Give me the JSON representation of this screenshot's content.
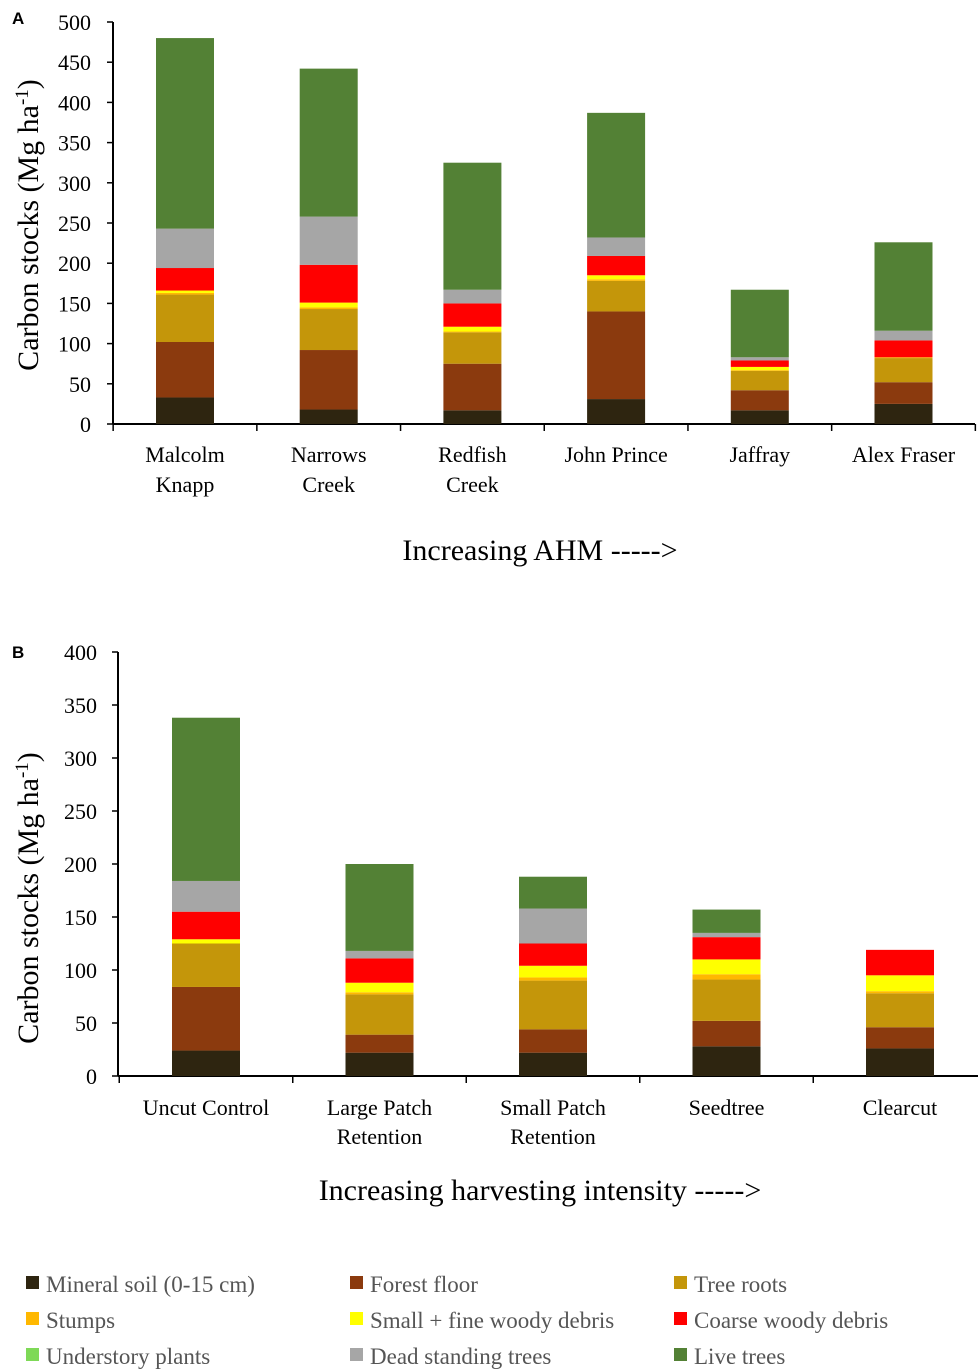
{
  "colors": {
    "mineral_soil": "#2e2510",
    "forest_floor": "#8b3a0e",
    "tree_roots": "#c4960a",
    "stumps": "#ffb800",
    "small_fine_woody_debris": "#ffff00",
    "coarse_woody_debris": "#ff0000",
    "understory_plants": "#7ed957",
    "dead_standing_trees": "#a6a6a6",
    "live_trees": "#538135"
  },
  "legend": [
    {
      "key": "mineral_soil",
      "label": "Mineral soil (0-15 cm)"
    },
    {
      "key": "forest_floor",
      "label": "Forest floor"
    },
    {
      "key": "tree_roots",
      "label": "Tree roots"
    },
    {
      "key": "stumps",
      "label": "Stumps"
    },
    {
      "key": "small_fine_woody_debris",
      "label": "Small + fine woody debris"
    },
    {
      "key": "coarse_woody_debris",
      "label": "Coarse woody debris"
    },
    {
      "key": "understory_plants",
      "label": "Understory plants"
    },
    {
      "key": "dead_standing_trees",
      "label": "Dead standing trees"
    },
    {
      "key": "live_trees",
      "label": "Live trees"
    }
  ],
  "chart_data": [
    {
      "panel": "A",
      "type": "bar",
      "stacked": true,
      "xlabel": "Increasing AHM ----->",
      "ylabel": "Carbon stocks (Mg ha",
      "ylabel_sup": "-1",
      "ylabel_end": ")",
      "ylim": [
        0,
        500
      ],
      "yticks": [
        0,
        50,
        100,
        150,
        200,
        250,
        300,
        350,
        400,
        450,
        500
      ],
      "categories": [
        [
          "Malcolm",
          "Knapp"
        ],
        [
          "Narrows",
          "Creek"
        ],
        [
          "Redfish",
          "Creek"
        ],
        [
          "John Prince"
        ],
        [
          "Jaffray"
        ],
        [
          "Alex Fraser"
        ]
      ],
      "series": [
        {
          "key": "mineral_soil",
          "name": "Mineral soil (0-15 cm)",
          "values": [
            33,
            18,
            17,
            31,
            17,
            25
          ]
        },
        {
          "key": "forest_floor",
          "name": "Forest floor",
          "values": [
            69,
            74,
            58,
            109,
            25,
            27
          ]
        },
        {
          "key": "tree_roots",
          "name": "Tree roots",
          "values": [
            59,
            51,
            39,
            38,
            24,
            30
          ]
        },
        {
          "key": "stumps",
          "name": "Stumps",
          "values": [
            2,
            2,
            1,
            2,
            1,
            1
          ]
        },
        {
          "key": "small_fine_woody_debris",
          "name": "Small + fine woody debris",
          "values": [
            3,
            6,
            6,
            5,
            4,
            0
          ]
        },
        {
          "key": "coarse_woody_debris",
          "name": "Coarse woody debris",
          "values": [
            28,
            47,
            29,
            24,
            8,
            21
          ]
        },
        {
          "key": "understory_plants",
          "name": "Understory plants",
          "values": [
            0,
            0,
            0,
            0,
            0,
            0
          ]
        },
        {
          "key": "dead_standing_trees",
          "name": "Dead standing trees",
          "values": [
            49,
            60,
            17,
            23,
            4,
            12
          ]
        },
        {
          "key": "live_trees",
          "name": "Live trees",
          "values": [
            237,
            184,
            158,
            155,
            84,
            110
          ]
        }
      ]
    },
    {
      "panel": "B",
      "type": "bar",
      "stacked": true,
      "xlabel": "Increasing harvesting intensity ----->",
      "ylabel": "Carbon stocks (Mg ha",
      "ylabel_sup": "-1",
      "ylabel_end": ")",
      "ylim": [
        0,
        400
      ],
      "yticks": [
        0,
        50,
        100,
        150,
        200,
        250,
        300,
        350,
        400
      ],
      "categories": [
        [
          "Uncut Control"
        ],
        [
          "Large Patch",
          "Retention"
        ],
        [
          "Small Patch",
          "Retention"
        ],
        [
          "Seedtree"
        ],
        [
          "Clearcut"
        ]
      ],
      "series": [
        {
          "key": "mineral_soil",
          "name": "Mineral soil (0-15 cm)",
          "values": [
            24,
            22,
            22,
            28,
            26
          ]
        },
        {
          "key": "forest_floor",
          "name": "Forest floor",
          "values": [
            60,
            17,
            22,
            24,
            20
          ]
        },
        {
          "key": "tree_roots",
          "name": "Tree roots",
          "values": [
            41,
            38,
            46,
            39,
            32
          ]
        },
        {
          "key": "stumps",
          "name": "Stumps",
          "values": [
            0,
            2,
            3,
            5,
            2
          ]
        },
        {
          "key": "small_fine_woody_debris",
          "name": "Small + fine woody debris",
          "values": [
            4,
            9,
            11,
            14,
            15
          ]
        },
        {
          "key": "coarse_woody_debris",
          "name": "Coarse woody debris",
          "values": [
            26,
            23,
            21,
            21,
            24
          ]
        },
        {
          "key": "understory_plants",
          "name": "Understory plants",
          "values": [
            0,
            0,
            0,
            0,
            0
          ]
        },
        {
          "key": "dead_standing_trees",
          "name": "Dead standing trees",
          "values": [
            29,
            7,
            33,
            4,
            0
          ]
        },
        {
          "key": "live_trees",
          "name": "Live trees",
          "values": [
            154,
            82,
            30,
            22,
            0
          ]
        }
      ]
    }
  ]
}
